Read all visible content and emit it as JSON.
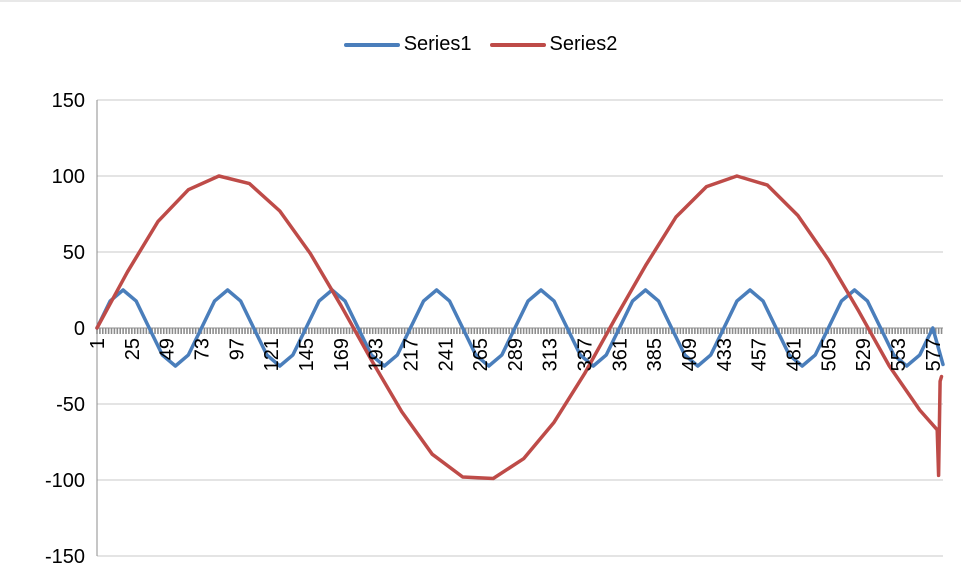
{
  "chart_data": {
    "type": "line",
    "title": "",
    "xlabel": "",
    "ylabel": "",
    "ylim": [
      -150,
      150
    ],
    "yticks": [
      150,
      100,
      50,
      0,
      -50,
      -100,
      -150
    ],
    "xlim": [
      1,
      584
    ],
    "xticks": [
      1,
      25,
      49,
      73,
      97,
      121,
      145,
      169,
      193,
      217,
      241,
      265,
      289,
      313,
      337,
      361,
      385,
      409,
      433,
      457,
      481,
      505,
      529,
      553,
      577
    ],
    "grid": "horizontal",
    "legend_position": "top",
    "series": [
      {
        "name": "Series1",
        "color": "#4a7ebb",
        "x": [
          1,
          10,
          19,
          28,
          37,
          46,
          55,
          64,
          73,
          82,
          91,
          100,
          109,
          118,
          127,
          136,
          145,
          154,
          163,
          172,
          181,
          190,
          199,
          208,
          217,
          226,
          235,
          244,
          253,
          262,
          271,
          280,
          289,
          298,
          307,
          316,
          325,
          334,
          343,
          352,
          361,
          370,
          379,
          388,
          397,
          406,
          415,
          424,
          433,
          442,
          451,
          460,
          469,
          478,
          487,
          496,
          505,
          514,
          523,
          532,
          541,
          550,
          559,
          568,
          577,
          584
        ],
        "values": [
          0,
          17.7,
          25,
          17.7,
          0,
          -17.7,
          -25,
          -17.7,
          0,
          17.7,
          25,
          17.7,
          0,
          -17.7,
          -25,
          -17.7,
          0,
          17.7,
          25,
          17.7,
          0,
          -17.7,
          -25,
          -17.7,
          0,
          17.7,
          25,
          17.7,
          0,
          -17.7,
          -25,
          -17.7,
          0,
          17.7,
          25,
          17.7,
          0,
          -17.7,
          -25,
          -17.7,
          0,
          17.7,
          25,
          17.7,
          0,
          -17.7,
          -25,
          -17.7,
          0,
          17.7,
          25,
          17.7,
          0,
          -17.7,
          -25,
          -17.7,
          0,
          17.7,
          25,
          17.7,
          0,
          -17.7,
          -25,
          -17.7,
          0,
          -24
        ]
      },
      {
        "name": "Series2",
        "color": "#be4b48",
        "x": [
          1,
          22,
          43,
          64,
          85,
          106,
          127,
          148,
          169,
          190,
          211,
          232,
          253,
          274,
          295,
          316,
          337,
          358,
          379,
          400,
          421,
          442,
          463,
          484,
          505,
          526,
          547,
          568,
          580,
          581,
          582,
          583
        ],
        "values": [
          0,
          37,
          70,
          91,
          100,
          95,
          77,
          49,
          15,
          -21,
          -55,
          -83,
          -98,
          -99,
          -86,
          -62,
          -30,
          6,
          41,
          73,
          93,
          100,
          94,
          74,
          45,
          11,
          -25,
          -54,
          -67,
          -97,
          -35,
          -32
        ]
      }
    ]
  }
}
